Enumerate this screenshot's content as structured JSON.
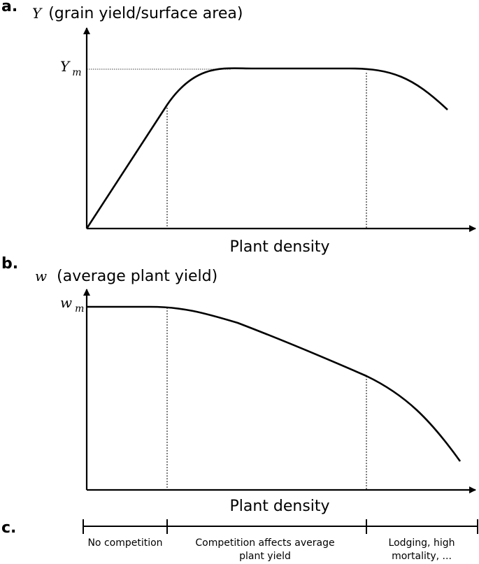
{
  "panels": {
    "a": {
      "label": "a.",
      "y_var": "Y",
      "y_title": "(grain yield/surface area)",
      "max_var": "Y",
      "max_sub": "m",
      "x_label": "Plant density"
    },
    "b": {
      "label": "b.",
      "y_var": "w",
      "y_title": "(average plant yield)",
      "max_var": "w",
      "max_sub": "m",
      "x_label": "Plant density"
    },
    "c": {
      "label": "c.",
      "phases": {
        "phase1": "No competition",
        "phase2_line1": "Competition affects average",
        "phase2_line2": "plant yield",
        "phase3_line1": "Lodging, high",
        "phase3_line2": "mortality, ..."
      }
    }
  }
}
